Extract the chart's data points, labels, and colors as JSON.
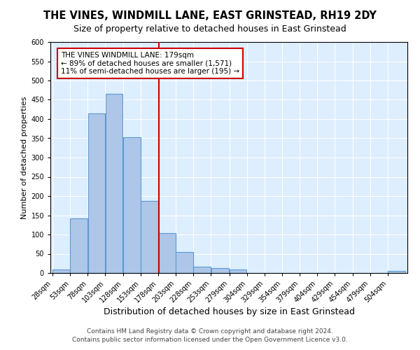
{
  "title": "THE VINES, WINDMILL LANE, EAST GRINSTEAD, RH19 2DY",
  "subtitle": "Size of property relative to detached houses in East Grinstead",
  "xlabel": "Distribution of detached houses by size in East Grinstead",
  "ylabel": "Number of detached properties",
  "bin_edges": [
    28,
    53,
    78,
    103,
    128,
    153,
    178,
    203,
    228,
    253,
    279,
    304,
    329,
    354,
    379,
    404,
    429,
    454,
    479,
    504,
    529
  ],
  "bar_heights": [
    10,
    142,
    415,
    465,
    353,
    187,
    104,
    54,
    17,
    13,
    10,
    0,
    0,
    0,
    0,
    0,
    0,
    0,
    0,
    5
  ],
  "bar_color": "#aec6e8",
  "bar_edge_color": "#5b9bd5",
  "vline_x": 179,
  "vline_color": "#cc0000",
  "annotation_title": "THE VINES WINDMILL LANE: 179sqm",
  "annotation_line1": "← 89% of detached houses are smaller (1,571)",
  "annotation_line2": "11% of semi-detached houses are larger (195) →",
  "annotation_box_color": "#ffffff",
  "annotation_box_edge_color": "#cc0000",
  "ylim": [
    0,
    600
  ],
  "yticks": [
    0,
    50,
    100,
    150,
    200,
    250,
    300,
    350,
    400,
    450,
    500,
    550,
    600
  ],
  "footer_line1": "Contains HM Land Registry data © Crown copyright and database right 2024.",
  "footer_line2": "Contains public sector information licensed under the Open Government Licence v3.0.",
  "background_color": "#ddeeff",
  "fig_background_color": "#ffffff",
  "title_fontsize": 10.5,
  "subtitle_fontsize": 9,
  "xlabel_fontsize": 9,
  "ylabel_fontsize": 8,
  "footer_fontsize": 6.5,
  "tick_fontsize": 7,
  "annotation_fontsize": 7.5
}
